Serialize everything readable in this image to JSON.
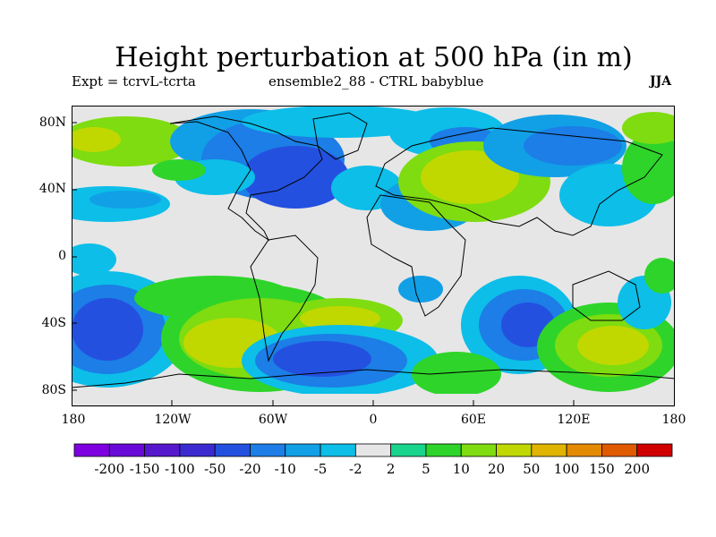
{
  "title": "Height perturbation at 500 hPa (in m)",
  "subtitle_left": "Expt = tcrvL-tcrta",
  "subtitle_center": "ensemble2_88 - CTRL babyblue",
  "subtitle_right": "JJA",
  "lat_labels": [
    "80N",
    "40N",
    "0",
    "40S",
    "80S"
  ],
  "lon_labels": [
    "180",
    "120W",
    "60W",
    "0",
    "60E",
    "120E",
    "180"
  ],
  "colorbar": {
    "labels": [
      "-200",
      "-150",
      "-100",
      "-50",
      "-20",
      "-10",
      "-5",
      "-2",
      "2",
      "5",
      "10",
      "20",
      "50",
      "100",
      "150",
      "200"
    ],
    "colors": [
      "#7e00e0",
      "#6a0ad8",
      "#5518cc",
      "#3c2ad0",
      "#2450e0",
      "#1c7ee6",
      "#11a0e6",
      "#0cbee8",
      "#e6e6e6",
      "#19d48c",
      "#2ed42a",
      "#7edc10",
      "#c0d800",
      "#e0b400",
      "#e48a00",
      "#e05a00",
      "#d00000"
    ]
  }
}
